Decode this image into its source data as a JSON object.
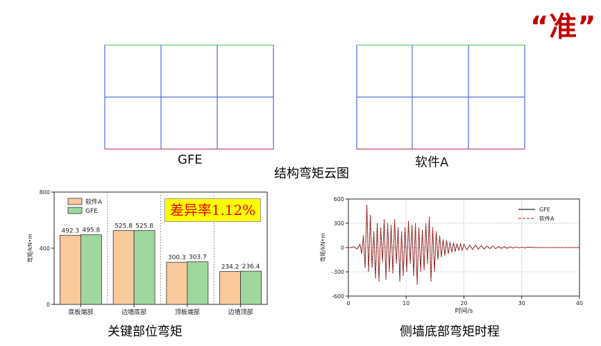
{
  "header": {
    "badge": "“准”"
  },
  "cloud_section": {
    "left_caption": "GFE",
    "right_caption": "软件A",
    "title": "结构弯矩云图"
  },
  "bar_panel": {
    "caption": "关键部位弯矩",
    "difference_label": "差异率1.12%"
  },
  "timeseries_panel": {
    "caption": "侧墙底部弯矩时程"
  },
  "chart_data": [
    {
      "type": "bar",
      "categories": [
        "底板端部",
        "边墙底部",
        "顶板端部",
        "边墙顶部"
      ],
      "series": [
        {
          "name": "软件A",
          "values": [
            492.3,
            525.8,
            300.3,
            234.2
          ],
          "color": "#f8c99b",
          "labels": [
            "492.3",
            "525.8",
            "300.3",
            "234.2"
          ]
        },
        {
          "name": "GFE",
          "values": [
            495.8,
            525.8,
            303.7,
            236.4
          ],
          "color": "#9fd79f",
          "labels": [
            "495.8",
            "525.8",
            "303.7",
            "236.4"
          ]
        }
      ],
      "ylabel": "弯矩/kN•m",
      "ylim": [
        0,
        800
      ],
      "yticks": [
        0,
        400,
        800
      ],
      "grid": false,
      "legend": "top-left"
    },
    {
      "type": "line",
      "xlabel": "时间/s",
      "ylabel": "弯矩/kN•m",
      "xlim": [
        0,
        40
      ],
      "ylim": [
        -600,
        600
      ],
      "xticks": [
        0,
        10,
        20,
        30,
        40
      ],
      "yticks": [
        -600,
        -300,
        0,
        300,
        600
      ],
      "grid": true,
      "legend": "top-right",
      "series": [
        {
          "name": "GFE",
          "color": "#222222",
          "style": "solid"
        },
        {
          "name": "软件A",
          "color": "#e03030",
          "style": "dashed"
        }
      ],
      "x": [
        0,
        0.5,
        1,
        1.5,
        2,
        2.3,
        2.6,
        2.9,
        3.2,
        3.5,
        3.8,
        4.1,
        4.4,
        4.7,
        5,
        5.3,
        5.6,
        5.9,
        6.2,
        6.5,
        6.8,
        7.1,
        7.4,
        7.7,
        8,
        8.3,
        8.6,
        8.9,
        9.2,
        9.5,
        9.8,
        10.1,
        10.4,
        10.7,
        11,
        11.3,
        11.6,
        11.9,
        12.2,
        12.5,
        12.8,
        13.1,
        13.4,
        13.7,
        14,
        14.3,
        14.6,
        14.9,
        15.2,
        15.5,
        15.8,
        16.1,
        16.4,
        16.7,
        17,
        17.3,
        17.6,
        17.9,
        18.2,
        18.5,
        18.8,
        19.1,
        19.4,
        19.7,
        20,
        20.5,
        21,
        21.5,
        22,
        22.5,
        23,
        23.5,
        24,
        24.5,
        25,
        25.5,
        26,
        26.5,
        27,
        27.5,
        28,
        28.5,
        29,
        29.5,
        30,
        30.5,
        31,
        32,
        34,
        36,
        38,
        40
      ],
      "y": [
        0,
        0,
        10,
        -20,
        40,
        -80,
        150,
        -250,
        530,
        -300,
        400,
        -250,
        200,
        -380,
        300,
        -420,
        250,
        -180,
        350,
        -400,
        300,
        -300,
        280,
        -320,
        350,
        -200,
        250,
        -420,
        200,
        -350,
        250,
        -300,
        330,
        -200,
        280,
        -350,
        300,
        -460,
        250,
        -300,
        220,
        -280,
        300,
        -200,
        380,
        -420,
        250,
        -300,
        200,
        -150,
        150,
        -120,
        100,
        -100,
        90,
        -80,
        70,
        -60,
        60,
        -50,
        50,
        -40,
        45,
        -35,
        40,
        -30,
        30,
        -25,
        30,
        -20,
        25,
        -20,
        20,
        -15,
        20,
        -15,
        15,
        -12,
        12,
        -10,
        10,
        -8,
        8,
        -6,
        6,
        -5,
        5,
        2,
        0,
        0,
        0,
        0
      ]
    }
  ]
}
